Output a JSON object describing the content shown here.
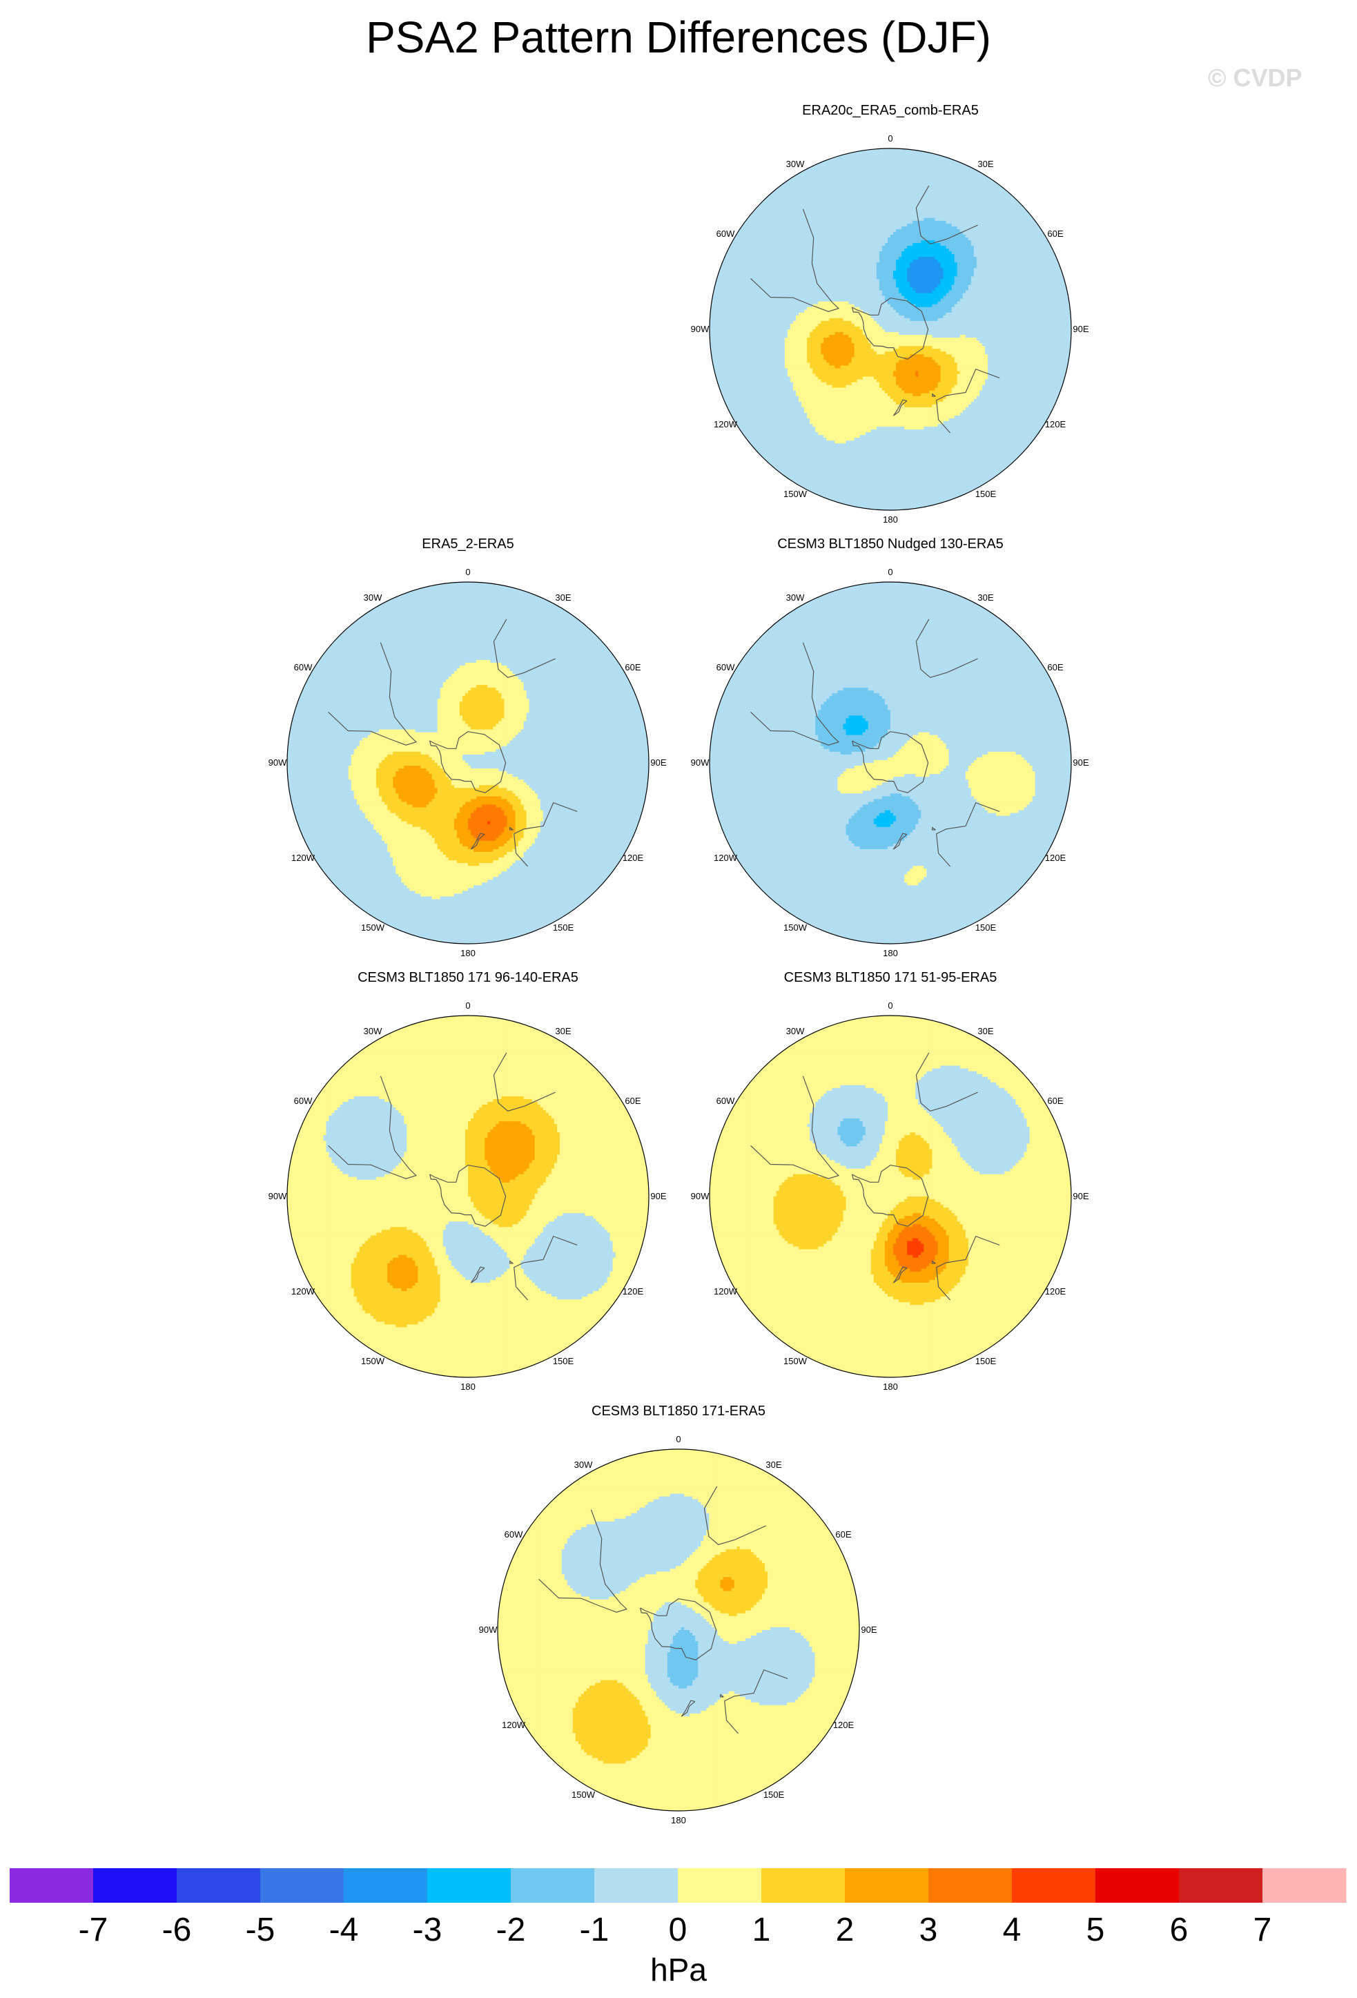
{
  "title": "PSA2 Pattern Differences (DJF)",
  "watermark": "© CVDP",
  "units": "hPa",
  "longitude_labels": [
    "0",
    "30E",
    "60E",
    "90E",
    "120E",
    "150E",
    "180",
    "150W",
    "120W",
    "90W",
    "60W",
    "30W"
  ],
  "colorbar": {
    "colors": [
      "#8a2be2",
      "#1e10f5",
      "#2c48e6",
      "#3877e6",
      "#1f96f0",
      "#00bfff",
      "#70c8f0",
      "#b3def2",
      "#fff98f",
      "#ffd42a",
      "#ffa500",
      "#ff7a00",
      "#ff3e00",
      "#eb0000",
      "#d11f1f",
      "#ffb3b3"
    ],
    "labels": [
      "-7",
      "-6",
      "-5",
      "-4",
      "-3",
      "-2",
      "-1",
      "0",
      "1",
      "2",
      "3",
      "4",
      "5",
      "6",
      "7"
    ],
    "levels": [
      -7,
      -6,
      -5,
      -4,
      -3,
      -2,
      -1,
      0,
      1,
      2,
      3,
      4,
      5,
      6,
      7
    ]
  },
  "panels": [
    {
      "title": "ERA20c_ERA5_comb-ERA5",
      "background_level": -0.5,
      "anomalies": [
        {
          "lon": 35,
          "lat": -50,
          "peak": -3.5
        },
        {
          "lon": 65,
          "lat": -48,
          "peak": 0.9
        },
        {
          "lon": 90,
          "lat": -60,
          "peak": -0.8
        },
        {
          "lon": 150,
          "lat": -58,
          "peak": 3.4
        },
        {
          "lon": 115,
          "lat": -45,
          "peak": 0.8
        },
        {
          "lon": -110,
          "lat": -55,
          "peak": 3.0
        },
        {
          "lon": -150,
          "lat": -32,
          "peak": 0.7
        }
      ]
    },
    {
      "title": "ERA5_2-ERA5",
      "background_level": -0.5,
      "anomalies": [
        {
          "lon": 15,
          "lat": -55,
          "peak": 2.2
        },
        {
          "lon": 160,
          "lat": -50,
          "peak": 4.6
        },
        {
          "lon": -115,
          "lat": -55,
          "peak": 3.0
        },
        {
          "lon": -160,
          "lat": -30,
          "peak": 0.9
        },
        {
          "lon": -90,
          "lat": -40,
          "peak": 0.7
        },
        {
          "lon": 150,
          "lat": -25,
          "peak": -0.8
        }
      ]
    },
    {
      "title": "CESM3 BLT1850 Nudged 130-ERA5",
      "background_level": -0.5,
      "anomalies": [
        {
          "lon": -45,
          "lat": -60,
          "peak": -1.8
        },
        {
          "lon": -135,
          "lat": -70,
          "peak": 2.0
        },
        {
          "lon": -170,
          "lat": -58,
          "peak": -2.5
        },
        {
          "lon": 75,
          "lat": -70,
          "peak": 0.8
        },
        {
          "lon": 170,
          "lat": -30,
          "peak": 0.7
        },
        {
          "lon": 100,
          "lat": -25,
          "peak": 0.8
        }
      ]
    },
    {
      "title": "CESM3 BLT1850 171 96-140-ERA5",
      "background_level": 0.5,
      "anomalies": [
        {
          "lon": 40,
          "lat": -50,
          "peak": 2.4
        },
        {
          "lon": 175,
          "lat": -60,
          "peak": -1.8
        },
        {
          "lon": -140,
          "lat": -32,
          "peak": 1.8
        },
        {
          "lon": 120,
          "lat": -70,
          "peak": 1.5
        },
        {
          "lon": 120,
          "lat": -25,
          "peak": -1.2
        },
        {
          "lon": -60,
          "lat": -25,
          "peak": -1.1
        }
      ]
    },
    {
      "title": "CESM3 BLT1850 171 51-95-ERA5",
      "background_level": 0.5,
      "anomalies": [
        {
          "lon": -30,
          "lat": -45,
          "peak": -1.8
        },
        {
          "lon": 155,
          "lat": -55,
          "peak": 3.8
        },
        {
          "lon": -100,
          "lat": -45,
          "peak": 1.6
        },
        {
          "lon": -140,
          "lat": -65,
          "peak": -0.8
        },
        {
          "lon": 30,
          "lat": -30,
          "peak": -1.0
        },
        {
          "lon": 60,
          "lat": -25,
          "peak": -0.9
        },
        {
          "lon": 25,
          "lat": -55,
          "peak": 1.2
        }
      ]
    },
    {
      "title": "CESM3 BLT1850 171-ERA5",
      "background_level": 0.5,
      "anomalies": [
        {
          "lon": 45,
          "lat": -50,
          "peak": 1.7
        },
        {
          "lon": 178,
          "lat": -60,
          "peak": -1.6
        },
        {
          "lon": 0,
          "lat": -35,
          "peak": -1.2
        },
        {
          "lon": 110,
          "lat": -32,
          "peak": -1.2
        },
        {
          "lon": -50,
          "lat": -30,
          "peak": -1.0
        },
        {
          "lon": -145,
          "lat": -28,
          "peak": 1.2
        },
        {
          "lon": 90,
          "lat": -85,
          "peak": -1.4
        }
      ]
    }
  ]
}
